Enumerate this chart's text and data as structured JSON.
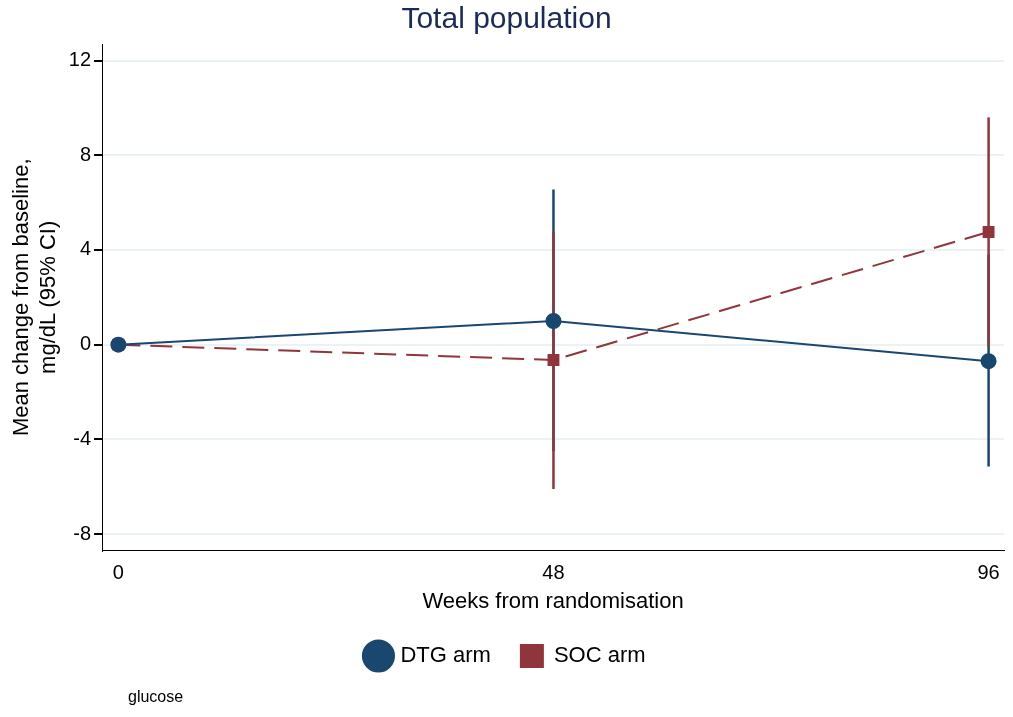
{
  "chart_data": {
    "type": "line",
    "title": "Total population",
    "xlabel": "Weeks from randomisation",
    "ylabel": "Mean change from baseline, mg/dL (95% CI)",
    "x": [
      0,
      48,
      96
    ],
    "xlim": [
      -1.8,
      97.7
    ],
    "xticks": [
      0,
      48,
      96
    ],
    "ylim": [
      -8.7,
      12.7
    ],
    "yticks": [
      -8,
      -4,
      0,
      4,
      8,
      12
    ],
    "series": [
      {
        "name": "DTG arm",
        "color": "#1a476f",
        "values": [
          0,
          1.0,
          -0.7
        ],
        "errors": [
          null,
          [
            -4.5,
            6.55
          ],
          [
            -5.15,
            3.8
          ]
        ],
        "marker": "circle",
        "line_style": "solid"
      },
      {
        "name": "SOC arm",
        "color": "#90353b",
        "values": [
          0,
          -0.65,
          4.76
        ],
        "errors": [
          null,
          [
            -6.1,
            4.75
          ],
          [
            -0.1,
            9.6
          ]
        ],
        "marker": "square",
        "line_style": "dashed"
      }
    ],
    "grid": "y",
    "legend": "bottom",
    "annotations": [
      "glucose"
    ]
  }
}
